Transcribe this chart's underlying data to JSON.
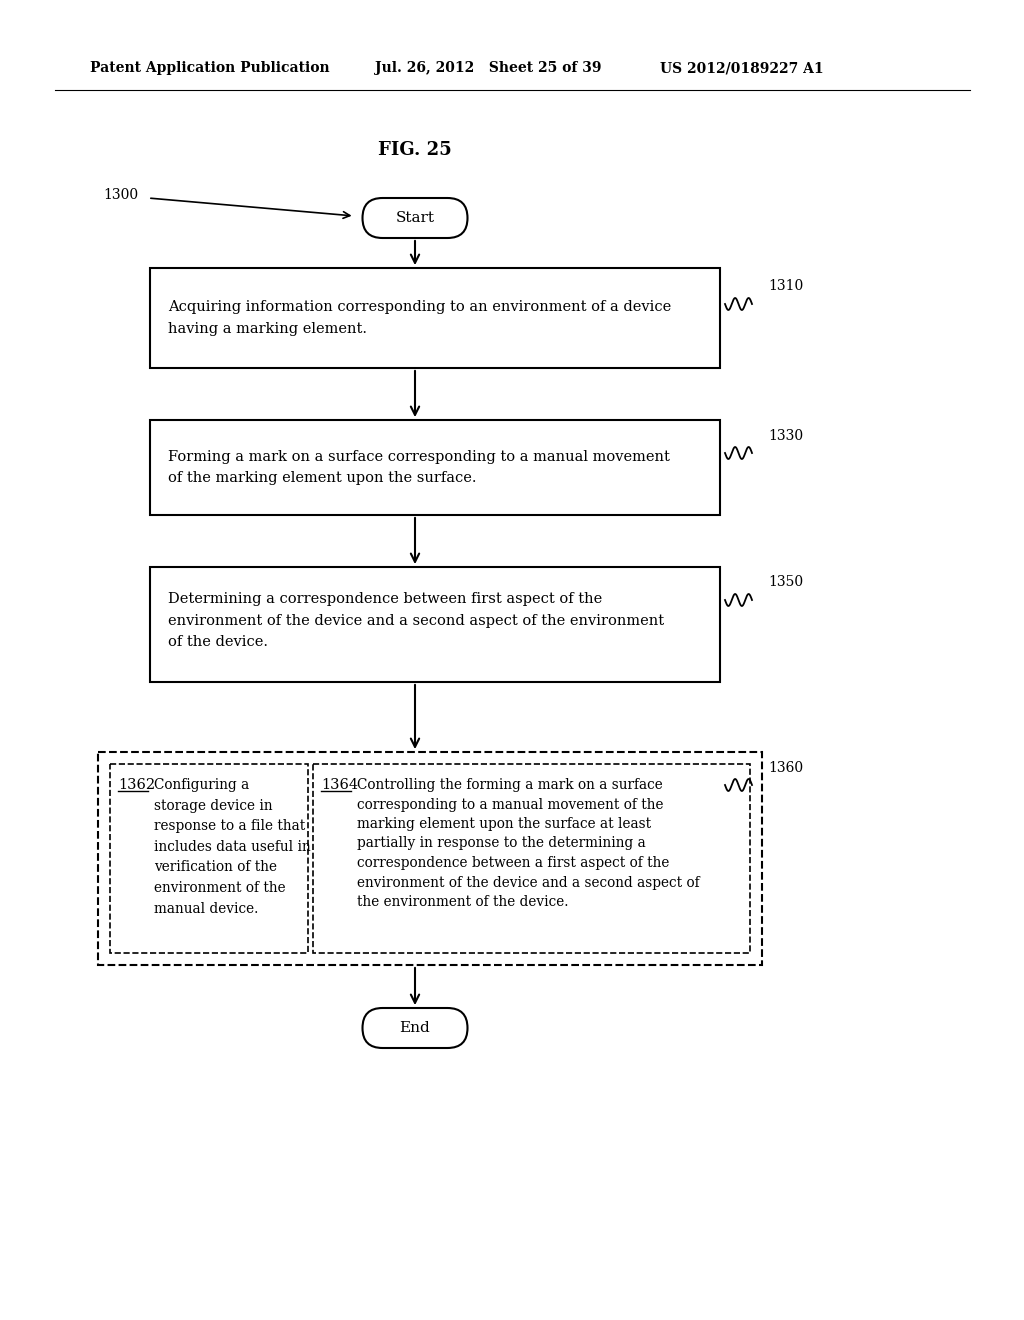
{
  "header_left": "Patent Application Publication",
  "header_mid": "Jul. 26, 2012   Sheet 25 of 39",
  "header_right": "US 2012/0189227 A1",
  "fig_title": "FIG. 25",
  "start_label": "Start",
  "end_label": "End",
  "ref_1300": "1300",
  "ref_1310": "1310",
  "ref_1330": "1330",
  "ref_1350": "1350",
  "ref_1360": "1360",
  "ref_1362": "1362",
  "ref_1364": "1364",
  "box1_text": "Acquiring information corresponding to an environment of a device\nhaving a marking element.",
  "box2_text": "Forming a mark on a surface corresponding to a manual movement\nof the marking element upon the surface.",
  "box3_text": "Determining a correspondence between first aspect of the\nenvironment of the device and a second aspect of the environment\nof the device.",
  "box4a_text": "Configuring a\nstorage device in\nresponse to a file that\nincludes data useful in\nverification of the\nenvironment of the\nmanual device.",
  "box4b_text": "Controlling the forming a mark on a surface\ncorresponding to a manual movement of the\nmarking element upon the surface at least\npartially in response to the determining a\ncorrespondence between a first aspect of the\nenvironment of the device and a second aspect of\nthe environment of the device.",
  "bg_color": "#ffffff",
  "line_color": "#000000",
  "text_color": "#000000"
}
